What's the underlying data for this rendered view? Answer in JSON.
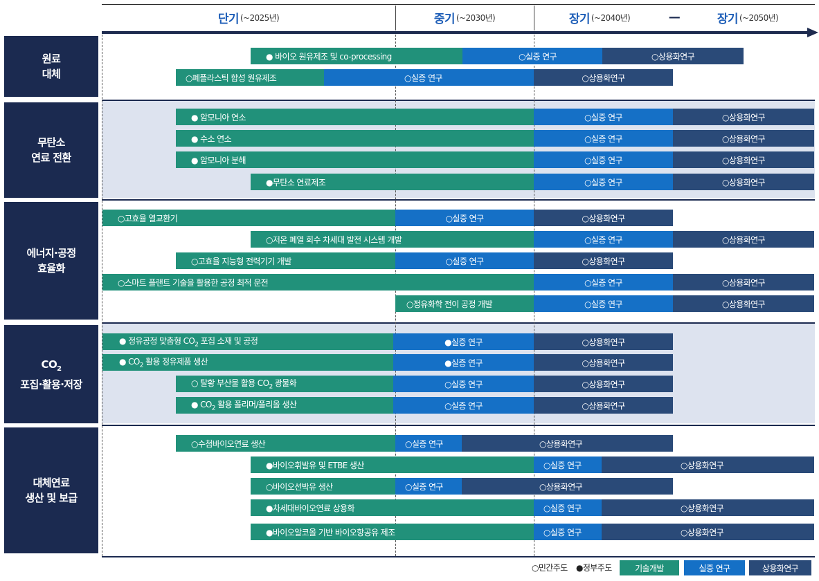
{
  "header": {
    "periods": [
      {
        "main": "단기",
        "sub": "(~2025년)"
      },
      {
        "main": "중기",
        "sub": "(~2030년)"
      },
      {
        "main": "장기",
        "sub": "(~2040년)"
      },
      {
        "main": "장기",
        "sub": "(~2050년)"
      }
    ],
    "dash": "—"
  },
  "categories": [
    {
      "line1": "원료",
      "line2": "대체"
    },
    {
      "line1": "무탄소",
      "line2": "연료 전환"
    },
    {
      "line1": "에너지·공정",
      "line2": "효율화"
    },
    {
      "line1": "CO",
      "sub": "2",
      "line2": "포집·활용·저장"
    },
    {
      "line1": "대체연료",
      "line2": "생산 및 보급"
    }
  ],
  "rows": [
    {
      "tech": "● 바이오 원유제조 및 co-processing",
      "demo": "○실증 연구",
      "comm": "○상용화연구"
    },
    {
      "tech": "○폐플라스틱 합성 원유제조",
      "demo": "○실증 연구",
      "comm": "○상용화연구"
    },
    {
      "tech": "● 암모니아 연소",
      "demo": "○실증 연구",
      "comm": "○상용화연구"
    },
    {
      "tech": "● 수소 연소",
      "demo": "○실증 연구",
      "comm": "○상용화연구"
    },
    {
      "tech": "● 암모니아 분해",
      "demo": "○실증 연구",
      "comm": "○상용화연구"
    },
    {
      "tech": "●무탄소 연료제조",
      "demo": "○실증 연구",
      "comm": "○상용화연구"
    },
    {
      "tech": "○고효율 열교환기",
      "demo": "○실증 연구",
      "comm": "○상용화연구"
    },
    {
      "tech": "○저온 폐열 회수 차세대 발전 시스템 개발",
      "demo": "○실증 연구",
      "comm": "○상용화연구"
    },
    {
      "tech": "○고효율 지능형 전력기기 개발",
      "demo": "○실증 연구",
      "comm": "○상용화연구"
    },
    {
      "tech": "○스마트 플랜트 기술을 활용한 공정 최적 운전",
      "demo": "○실증 연구",
      "comm": "○상용화연구"
    },
    {
      "tech": "○정유화학 전이 공정 개발",
      "demo": "○실증 연구",
      "comm": "○상용화연구"
    },
    {
      "tech_a": "● 정유공정 맞춤형 CO",
      "tech_sub": "2",
      "tech_b": " 포집 소재 및 공정",
      "demo": "●실증 연구",
      "comm": "○상용화연구"
    },
    {
      "tech_a": "● CO",
      "tech_sub": "2",
      "tech_b": " 활용 정유제품 생산",
      "demo": "●실증 연구",
      "comm": "○상용화연구"
    },
    {
      "tech_a": "○ 탈황 부산물 활용 CO",
      "tech_sub": "2",
      "tech_b": " 광물화",
      "demo": "○실증 연구",
      "comm": "○상용화연구"
    },
    {
      "tech_a": "● CO",
      "tech_sub": "2",
      "tech_b": " 활용 폴리머/폴리올 생산",
      "demo": "○실증 연구",
      "comm": "○상용화연구"
    },
    {
      "tech": "○수첨바이오연료 생산",
      "demo": "○실증 연구",
      "comm": "○상용화연구"
    },
    {
      "tech": "●바이오휘발유 및 ETBE 생산",
      "demo": "○실증 연구",
      "comm": "○상용화연구"
    },
    {
      "tech": "○바이오선박유 생산",
      "demo": "○실증 연구",
      "comm": "○상용화연구"
    },
    {
      "tech": "●차세대바이오연료 상용화",
      "demo": "○실증 연구",
      "comm": "○상용화연구"
    },
    {
      "tech": "●바이오알코올 기반 바이오항공유 제조",
      "demo": "○실증 연구",
      "comm": "○상용화연구"
    }
  ],
  "legend": {
    "private": "○민간주도",
    "government": "●정부주도",
    "tech": "기술개발",
    "demo": "실증 연구",
    "comm": "상용화연구"
  },
  "colors": {
    "tech": "#21917a",
    "demo": "#1570c6",
    "comm": "#2a4a78",
    "category": "#1b2a50",
    "band": "#dde3ef",
    "accent": "#1f5fb8"
  }
}
